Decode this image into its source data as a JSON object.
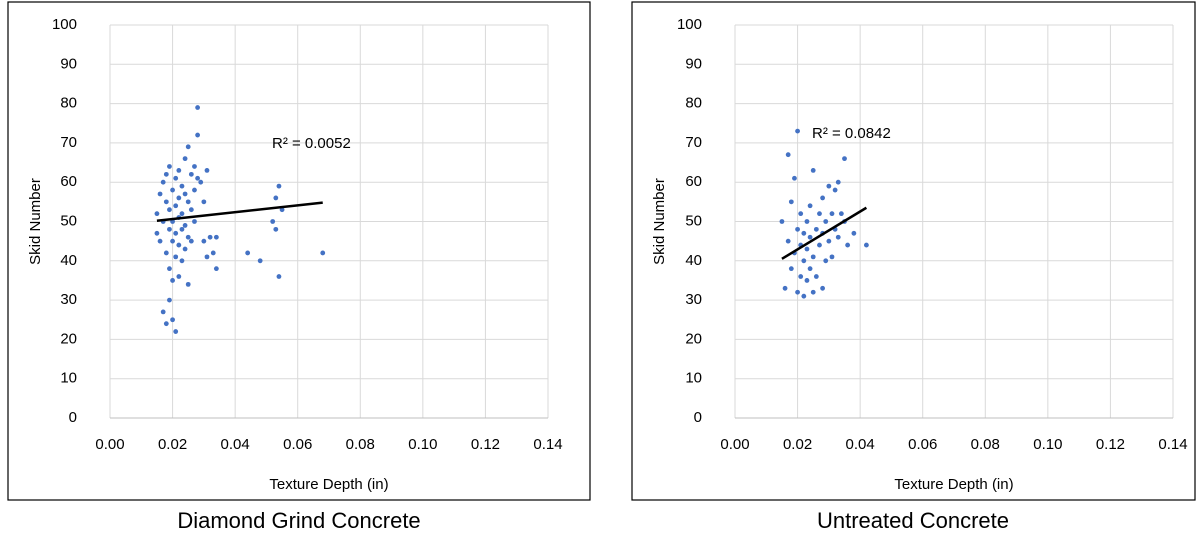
{
  "chart_data": [
    {
      "type": "scatter",
      "caption": "Diamond Grind Concrete",
      "x_label": "Texture Depth (in)",
      "y_label": "Skid Number",
      "color": "#4472c4",
      "grid": true,
      "xlim": [
        0,
        0.14
      ],
      "ylim": [
        0,
        100
      ],
      "xticks": [
        {
          "value": 0,
          "label": "0.00"
        },
        {
          "value": 0.02,
          "label": "0.02"
        },
        {
          "value": 0.04,
          "label": "0.04"
        },
        {
          "value": 0.06,
          "label": "0.06"
        },
        {
          "value": 0.08,
          "label": "0.08"
        },
        {
          "value": 0.1,
          "label": "0.10"
        },
        {
          "value": 0.12,
          "label": "0.12"
        },
        {
          "value": 0.14,
          "label": "0.14"
        }
      ],
      "yticks": [
        0,
        10,
        20,
        30,
        40,
        50,
        60,
        70,
        80,
        90,
        100
      ],
      "x": [
        0.015,
        0.015,
        0.016,
        0.016,
        0.017,
        0.017,
        0.017,
        0.018,
        0.018,
        0.018,
        0.018,
        0.019,
        0.019,
        0.019,
        0.019,
        0.019,
        0.02,
        0.02,
        0.02,
        0.02,
        0.02,
        0.021,
        0.021,
        0.021,
        0.021,
        0.021,
        0.022,
        0.022,
        0.022,
        0.022,
        0.022,
        0.023,
        0.023,
        0.023,
        0.023,
        0.024,
        0.024,
        0.024,
        0.024,
        0.025,
        0.025,
        0.025,
        0.025,
        0.026,
        0.026,
        0.026,
        0.027,
        0.027,
        0.027,
        0.028,
        0.028,
        0.028,
        0.029,
        0.03,
        0.03,
        0.031,
        0.031,
        0.032,
        0.033,
        0.034,
        0.034,
        0.044,
        0.048,
        0.052,
        0.053,
        0.053,
        0.054,
        0.054,
        0.055,
        0.068
      ],
      "values": [
        47,
        52,
        57,
        45,
        60,
        50,
        27,
        62,
        55,
        42,
        24,
        64,
        48,
        53,
        38,
        30,
        58,
        50,
        45,
        35,
        25,
        61,
        54,
        47,
        41,
        22,
        63,
        56,
        51,
        44,
        36,
        59,
        52,
        48,
        40,
        66,
        57,
        49,
        43,
        69,
        55,
        46,
        34,
        62,
        53,
        45,
        64,
        58,
        50,
        72,
        79,
        61,
        60,
        55,
        45,
        63,
        41,
        46,
        42,
        38,
        46,
        42,
        40,
        50,
        56,
        48,
        59,
        36,
        53,
        42
      ],
      "trendline": {
        "x": [
          0.015,
          0.068
        ],
        "y": [
          50.2,
          54.8
        ]
      },
      "annotation": "R² = 0.0052"
    },
    {
      "type": "scatter",
      "caption": "Untreated Concrete",
      "x_label": "Texture Depth (in)",
      "y_label": "Skid Number",
      "color": "#4472c4",
      "grid": true,
      "xlim": [
        0,
        0.14
      ],
      "ylim": [
        0,
        100
      ],
      "xticks": [
        {
          "value": 0,
          "label": "0.00"
        },
        {
          "value": 0.02,
          "label": "0.02"
        },
        {
          "value": 0.04,
          "label": "0.04"
        },
        {
          "value": 0.06,
          "label": "0.06"
        },
        {
          "value": 0.08,
          "label": "0.08"
        },
        {
          "value": 0.1,
          "label": "0.10"
        },
        {
          "value": 0.12,
          "label": "0.12"
        },
        {
          "value": 0.14,
          "label": "0.14"
        }
      ],
      "yticks": [
        0,
        10,
        20,
        30,
        40,
        50,
        60,
        70,
        80,
        90,
        100
      ],
      "x": [
        0.015,
        0.016,
        0.017,
        0.017,
        0.018,
        0.018,
        0.019,
        0.019,
        0.02,
        0.02,
        0.02,
        0.021,
        0.021,
        0.021,
        0.022,
        0.022,
        0.022,
        0.023,
        0.023,
        0.023,
        0.024,
        0.024,
        0.024,
        0.025,
        0.025,
        0.025,
        0.026,
        0.026,
        0.027,
        0.027,
        0.028,
        0.028,
        0.028,
        0.029,
        0.029,
        0.03,
        0.03,
        0.031,
        0.031,
        0.032,
        0.032,
        0.033,
        0.033,
        0.034,
        0.035,
        0.035,
        0.036,
        0.038,
        0.042
      ],
      "values": [
        50,
        33,
        67,
        45,
        38,
        55,
        42,
        61,
        73,
        32,
        48,
        36,
        44,
        52,
        31,
        40,
        47,
        35,
        50,
        43,
        38,
        54,
        46,
        32,
        63,
        41,
        48,
        36,
        52,
        44,
        33,
        56,
        47,
        50,
        40,
        59,
        45,
        52,
        41,
        58,
        48,
        60,
        46,
        52,
        66,
        50,
        44,
        47,
        44
      ],
      "trendline": {
        "x": [
          0.015,
          0.042
        ],
        "y": [
          40.5,
          53.5
        ]
      },
      "annotation": "R² = 0.0842"
    }
  ]
}
